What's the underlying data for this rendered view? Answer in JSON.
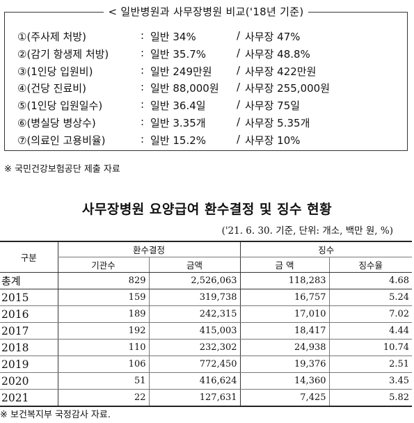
{
  "comparison": {
    "title": "< 일반병원과 사무장병원 비교('18년 기준)",
    "rows": [
      {
        "label": "①(주사제 처방)",
        "colon": ":",
        "general": "일반 34%",
        "slash": "/",
        "office": "사무장 47%"
      },
      {
        "label": "②(감기 항생제 처방)",
        "colon": ":",
        "general": "일반 35.7%",
        "slash": "/",
        "office": "사무장 48.8%"
      },
      {
        "label": "③(1인당 입원비)",
        "colon": ":",
        "general": "일반 249만원",
        "slash": "/",
        "office": "사무장 422만원"
      },
      {
        "label": "④(건당 진료비)",
        "colon": ":",
        "general": "일반 88,000원",
        "slash": "/",
        "office": "사무장 255,000원"
      },
      {
        "label": "⑤(1인당 입원일수)",
        "colon": ":",
        "general": "일반 36.4일",
        "slash": "/",
        "office": "사무장 75일"
      },
      {
        "label": "⑥(병실당 병상수)",
        "colon": ":",
        "general": "일반 3.35개",
        "slash": "/",
        "office": "사무장 5.35개"
      },
      {
        "label": "⑦(의료인 고용비율)",
        "colon": ":",
        "general": "일반 15.2%",
        "slash": "/",
        "office": "사무장 10%"
      }
    ]
  },
  "note1": "※ 국민건강보험공단 제출 자료",
  "table": {
    "title": "사무장병원 요양급여 환수결정 및 징수 현황",
    "subtitle": "('21. 6. 30. 기준, 단위: 개소, 백만 원, %)",
    "group_headers": {
      "category": "구분",
      "decision": "환수결정",
      "collection": "징수"
    },
    "sub_headers": {
      "count": "기관수",
      "amount": "금액",
      "collected_amount": "금 액",
      "rate": "징수율"
    },
    "rows": [
      {
        "year": "총계",
        "count": "829",
        "amount": "2,526,063",
        "collected": "118,283",
        "rate": "4.68"
      },
      {
        "year": "2015",
        "count": "159",
        "amount": "319,738",
        "collected": "16,757",
        "rate": "5.24"
      },
      {
        "year": "2016",
        "count": "189",
        "amount": "242,315",
        "collected": "17,010",
        "rate": "7.02"
      },
      {
        "year": "2017",
        "count": "192",
        "amount": "415,003",
        "collected": "18,417",
        "rate": "4.44"
      },
      {
        "year": "2018",
        "count": "110",
        "amount": "232,302",
        "collected": "24,938",
        "rate": "10.74"
      },
      {
        "year": "2019",
        "count": "106",
        "amount": "772,450",
        "collected": "19,376",
        "rate": "2.51"
      },
      {
        "year": "2020",
        "count": "51",
        "amount": "416,624",
        "collected": "14,360",
        "rate": "3.45"
      },
      {
        "year": "2021",
        "count": "22",
        "amount": "127,631",
        "collected": "7,425",
        "rate": "5.82"
      }
    ]
  },
  "note2": "※ 보건복지부 국정감사 자료."
}
